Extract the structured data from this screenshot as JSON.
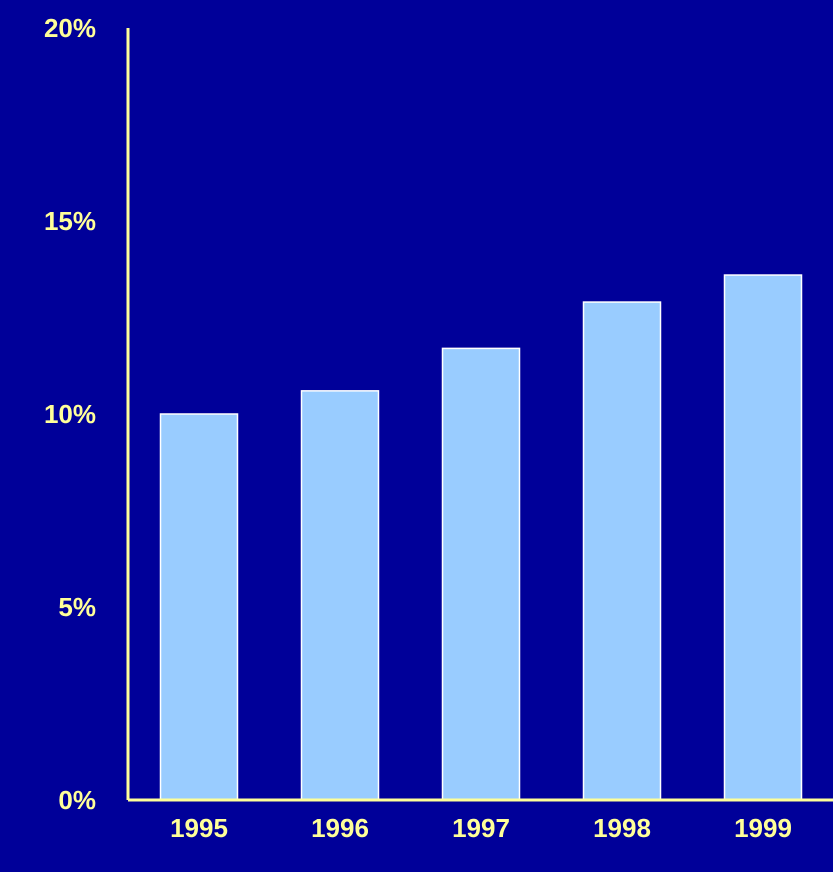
{
  "chart_data": {
    "type": "bar",
    "title": "",
    "xlabel": "",
    "ylabel": "",
    "categories": [
      "1995",
      "1996",
      "1997",
      "1998",
      "1999"
    ],
    "values": [
      10.0,
      10.6,
      11.7,
      12.9,
      13.6
    ],
    "ylim": [
      0,
      20
    ],
    "yticks": [
      0,
      5,
      10,
      15,
      20
    ],
    "ytick_labels": [
      "0%",
      "5%",
      "10%",
      "15%",
      "20%"
    ],
    "grid": false,
    "legend": "none",
    "colors": {
      "background": "#000099",
      "bar_fill": "#99CCFF",
      "bar_edge": "#FFFFFF",
      "axis": "#FFFF99",
      "text": "#FFFF99"
    }
  }
}
